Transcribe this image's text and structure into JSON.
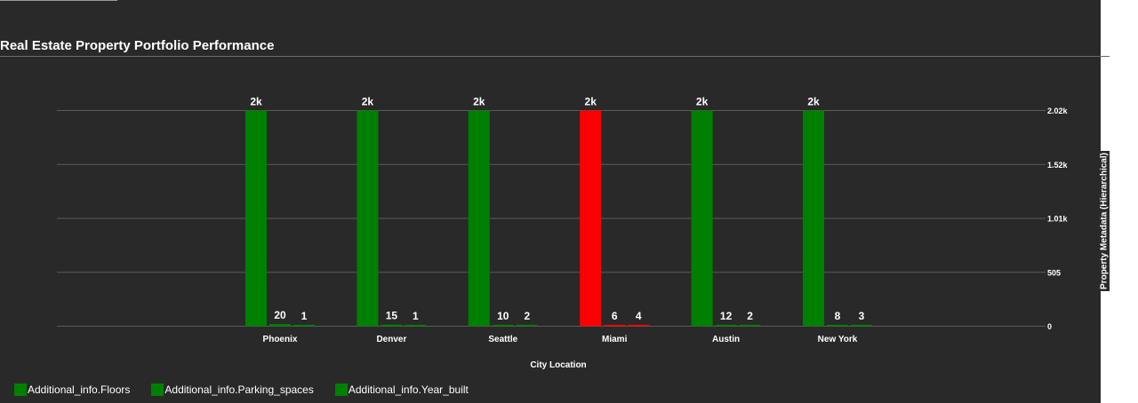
{
  "chart_data": {
    "type": "bar",
    "title": "Real Estate Property Portfolio Performance",
    "xlabel": "City Location",
    "ylabel": "Property Metadata (Hierarchical)",
    "categories": [
      "Phoenix",
      "Denver",
      "Seattle",
      "Miami",
      "Austin",
      "New York"
    ],
    "series": [
      {
        "name": "Additional_info.Floors",
        "values": [
          2020,
          2020,
          2020,
          2020,
          2020,
          2020
        ],
        "labels": [
          "2k",
          "2k",
          "2k",
          "2k",
          "2k",
          "2k"
        ]
      },
      {
        "name": "Additional_info.Parking_spaces",
        "values": [
          20,
          15,
          10,
          6,
          12,
          8
        ],
        "labels": [
          "20",
          "15",
          "10",
          "6",
          "12",
          "8"
        ]
      },
      {
        "name": "Additional_info.Year_built",
        "values": [
          1,
          1,
          2,
          4,
          2,
          3
        ],
        "labels": [
          "1",
          "1",
          "2",
          "4",
          "2",
          "3"
        ]
      }
    ],
    "highlight_category": "Miami",
    "ylim": [
      0,
      2020
    ],
    "yticks": [
      0,
      505,
      1010,
      1515,
      2020
    ],
    "ytick_labels": [
      "0",
      "505",
      "1.01k",
      "1.52k",
      "2.02k"
    ],
    "y_axis_side": "right",
    "grid": true,
    "legend_position": "bottom-left"
  },
  "colors": {
    "series": "#008000",
    "highlight": "#ff0000",
    "grid": "#5a5a5a",
    "text": "#ffffff"
  }
}
